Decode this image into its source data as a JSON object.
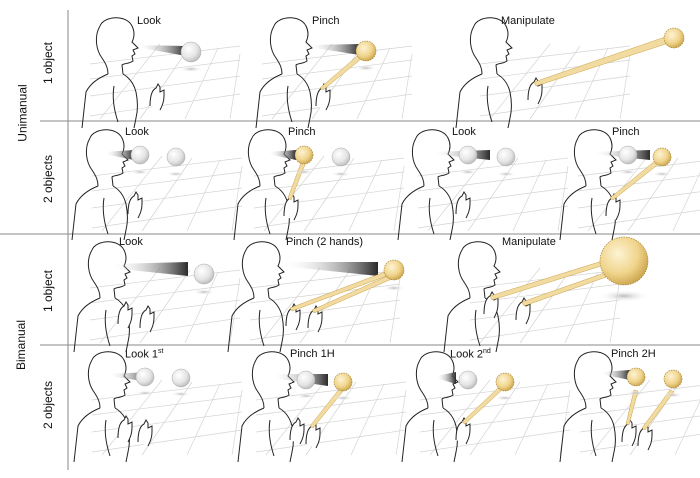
{
  "sections": [
    {
      "label": "Unimanual",
      "rows": [
        {
          "label": "1 object",
          "panels": [
            {
              "title": "Look"
            },
            {
              "title": "Pinch"
            },
            {
              "title": "Manipulate"
            }
          ]
        },
        {
          "label": "2 objects",
          "panels": [
            {
              "title": "Look"
            },
            {
              "title": "Pinch"
            },
            {
              "title": "Look"
            },
            {
              "title": "Pinch"
            }
          ]
        }
      ]
    },
    {
      "label": "Bimanual",
      "rows": [
        {
          "label": "1 object",
          "panels": [
            {
              "title": "Look"
            },
            {
              "title": "Pinch (2 hands)"
            },
            {
              "title": "Manipulate"
            }
          ]
        },
        {
          "label": "2 objects",
          "panels": [
            {
              "title": "Look 1",
              "sup": "st"
            },
            {
              "title": "Pinch 1H"
            },
            {
              "title": "Look 2",
              "sup": "nd"
            },
            {
              "title": "Pinch 2H"
            }
          ]
        }
      ]
    }
  ],
  "colors": {
    "sphere_selected": "#f1d48a",
    "sphere_idle": "#e8e8e8",
    "gaze": "#333333",
    "ray": "#e9c97a",
    "line": "#222222",
    "grid": "#cfcfcf"
  }
}
